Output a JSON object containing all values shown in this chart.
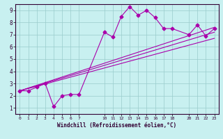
{
  "title": "",
  "xlabel": "Windchill (Refroidissement éolien,°C)",
  "bg_color": "#c8f0f0",
  "line_color": "#aa00aa",
  "grid_color": "#99cccc",
  "xlim": [
    -0.5,
    23.5
  ],
  "ylim": [
    0.5,
    9.5
  ],
  "xticks": [
    0,
    1,
    2,
    3,
    4,
    5,
    6,
    7,
    10,
    11,
    12,
    13,
    14,
    15,
    16,
    17,
    18,
    20,
    21,
    22,
    23
  ],
  "yticks": [
    1,
    2,
    3,
    4,
    5,
    6,
    7,
    8,
    9
  ],
  "line1_x": [
    0,
    1,
    2,
    3,
    4,
    5,
    6,
    7,
    10,
    11,
    12,
    13,
    14,
    15,
    16,
    17,
    18,
    20,
    21,
    22,
    23
  ],
  "line1_y": [
    2.4,
    2.4,
    2.7,
    3.0,
    1.1,
    2.0,
    2.1,
    2.1,
    7.2,
    6.8,
    8.5,
    9.3,
    8.6,
    9.0,
    8.4,
    7.5,
    7.5,
    7.0,
    7.8,
    6.9,
    7.5
  ],
  "line2_x": [
    0,
    23
  ],
  "line2_y": [
    2.4,
    7.6
  ],
  "line3_x": [
    0,
    23
  ],
  "line3_y": [
    2.4,
    7.2
  ],
  "line4_x": [
    0,
    23
  ],
  "line4_y": [
    2.4,
    6.7
  ],
  "markersize": 2.5,
  "linewidth": 0.8
}
